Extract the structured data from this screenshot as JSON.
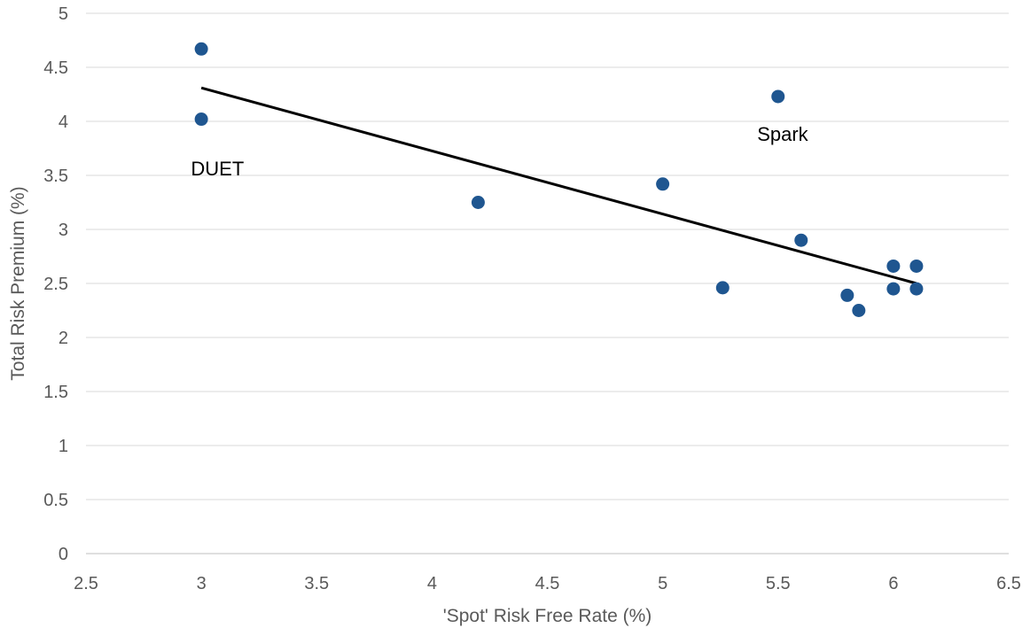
{
  "chart_data": {
    "type": "scatter",
    "title": "",
    "xlabel": "'Spot' Risk Free Rate (%)",
    "ylabel": "Total Risk Premium (%)",
    "xlim": [
      2.5,
      6.5
    ],
    "ylim": [
      0,
      5
    ],
    "x_ticks": [
      "2.5",
      "3",
      "3.5",
      "4",
      "4.5",
      "5",
      "5.5",
      "6",
      "6.5"
    ],
    "y_ticks": [
      "0",
      "0.5",
      "1",
      "1.5",
      "2",
      "2.5",
      "3",
      "3.5",
      "4",
      "4.5",
      "5"
    ],
    "grid": "horizontal",
    "legend": "none",
    "points": [
      {
        "x": 3.0,
        "y": 4.67
      },
      {
        "x": 3.0,
        "y": 4.02
      },
      {
        "x": 4.2,
        "y": 3.25
      },
      {
        "x": 5.0,
        "y": 3.42
      },
      {
        "x": 5.26,
        "y": 2.46
      },
      {
        "x": 5.5,
        "y": 4.23
      },
      {
        "x": 5.6,
        "y": 2.9
      },
      {
        "x": 5.8,
        "y": 2.39
      },
      {
        "x": 5.85,
        "y": 2.25
      },
      {
        "x": 6.0,
        "y": 2.66
      },
      {
        "x": 6.0,
        "y": 2.45
      },
      {
        "x": 6.1,
        "y": 2.66
      },
      {
        "x": 6.1,
        "y": 2.45
      }
    ],
    "trendline": {
      "x": [
        3.0,
        6.1
      ],
      "y": [
        4.31,
        2.5
      ]
    },
    "annotations": [
      {
        "text": "DUET",
        "x": 3.07,
        "y": 3.5
      },
      {
        "text": "Spark",
        "x": 5.52,
        "y": 3.82
      }
    ],
    "colors": {
      "marker": "#1f5690",
      "trendline": "#000000",
      "grid": "#d9d9d9",
      "text": "#595959"
    }
  }
}
